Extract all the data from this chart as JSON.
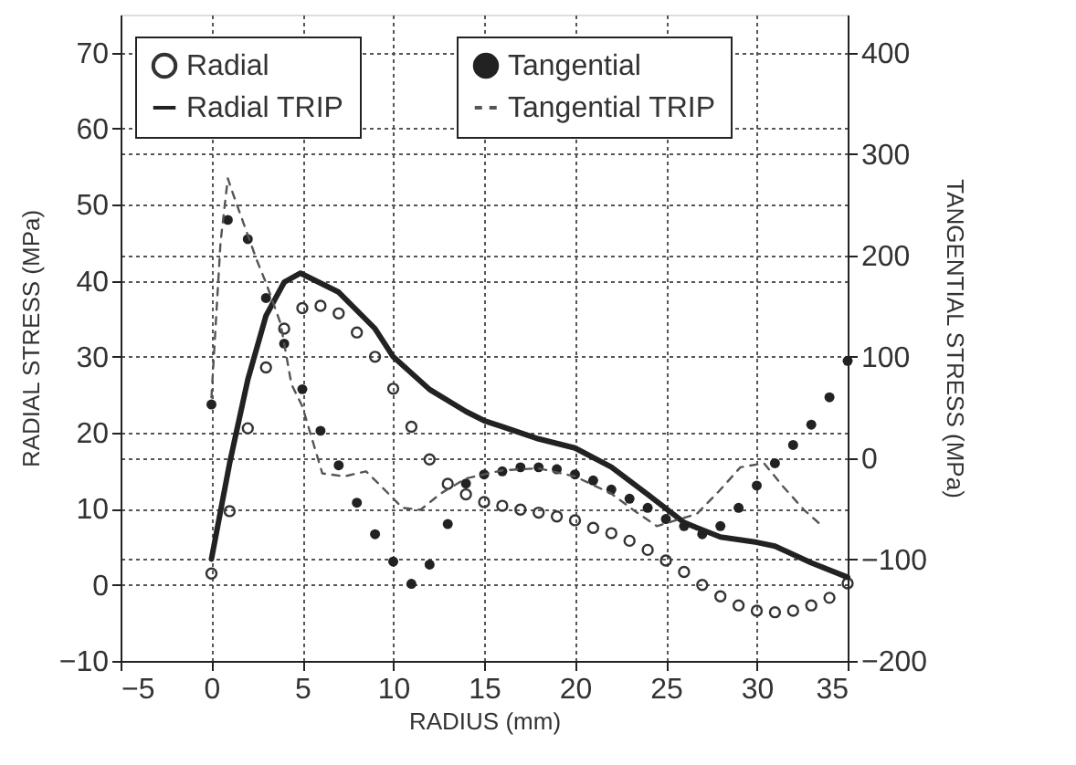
{
  "chart_data": {
    "type": "scatter",
    "xlabel": "RADIUS (mm)",
    "ylabel": "RADIAL STRESS (MPa)",
    "y2label": "TANGENTIAL STRESS (MPa)",
    "xlim": [
      -5,
      35
    ],
    "xticks": [
      -5,
      0,
      5,
      10,
      15,
      20,
      25,
      30,
      35
    ],
    "ylim": [
      -10,
      75
    ],
    "yticks": [
      -10,
      0,
      10,
      20,
      30,
      40,
      50,
      60,
      70
    ],
    "y2lim": [
      -200,
      437.5
    ],
    "y2ticks": [
      -200,
      -100,
      0,
      100,
      200,
      300,
      400
    ],
    "grid": true,
    "legend": "top",
    "series": [
      {
        "name": "Radial",
        "marker": "circle",
        "color": "#333333",
        "axis": "y",
        "x": [
          0,
          1,
          2,
          3,
          4,
          5,
          6,
          7,
          8,
          9,
          10,
          11,
          12,
          13,
          14,
          15,
          16,
          17,
          18,
          19,
          20,
          21,
          22,
          23,
          24,
          25,
          26,
          27,
          28,
          29,
          30,
          31,
          32,
          33,
          34,
          35
        ],
        "values": [
          1.5,
          9.7,
          20.6,
          28.6,
          33.7,
          36.4,
          36.7,
          35.7,
          33.2,
          30,
          25.8,
          20.8,
          16.5,
          13.3,
          11.9,
          10.9,
          10.4,
          9.9,
          9.5,
          9,
          8.5,
          7.5,
          6.8,
          5.8,
          4.6,
          3.2,
          1.7,
          0,
          -1.5,
          -2.7,
          -3.4,
          -3.6,
          -3.4,
          -2.7,
          -1.7,
          0.2
        ]
      },
      {
        "name": "Radial TRIP",
        "type": "line",
        "marker": "none",
        "line_style": "solid",
        "color": "#222222",
        "axis": "y",
        "x": [
          0,
          1,
          2,
          3,
          4,
          4.9,
          7,
          9,
          10,
          12,
          14,
          15,
          16,
          18,
          20,
          22,
          24,
          26,
          28,
          30,
          31,
          33,
          35
        ],
        "values": [
          3.4,
          16,
          27,
          35.4,
          39.8,
          41,
          38.5,
          33.7,
          30,
          25.7,
          22.8,
          21.6,
          20.8,
          19.2,
          18,
          15.5,
          11.9,
          8.2,
          6.3,
          5.6,
          5.1,
          2.9,
          1
        ]
      },
      {
        "name": "Tangential",
        "marker": "circle",
        "color": "#222222",
        "axis": "y2",
        "x": [
          0,
          0.9,
          2,
          3,
          4,
          5,
          6,
          7,
          8,
          9,
          10,
          11,
          12,
          13,
          14,
          15,
          16,
          17,
          18,
          19,
          20,
          21,
          22,
          23,
          24,
          25,
          26,
          27,
          28,
          29,
          30,
          31,
          32,
          33,
          34,
          35
        ],
        "values": [
          53,
          235,
          216,
          158,
          113,
          68,
          27,
          -7,
          -44,
          -75,
          -102,
          -124,
          -105,
          -65,
          -25,
          -16,
          -13,
          -9,
          -9,
          -11,
          -16,
          -22,
          -31,
          -40,
          -49,
          -60,
          -67,
          -75,
          -67,
          -49,
          -27,
          -5,
          13,
          33,
          60,
          96
        ]
      },
      {
        "name": "Tangential TRIP",
        "type": "line",
        "marker": "none",
        "line_style": "dashed",
        "color": "#555555",
        "axis": "y2",
        "x": [
          0,
          0.5,
          0.9,
          1.2,
          2.5,
          3,
          3.8,
          4.4,
          5,
          5.7,
          6.1,
          7.3,
          8.5,
          9.3,
          10.5,
          11.5,
          12.6,
          14,
          16,
          18,
          20,
          22,
          23.2,
          24.5,
          26.7,
          27.9,
          29.1,
          30.4,
          31.4,
          32.6,
          33.6
        ],
        "values": [
          60,
          213,
          276,
          260,
          195,
          173,
          133,
          73,
          51,
          9,
          -15,
          -18,
          -13,
          -27,
          -49,
          -51,
          -35,
          -20,
          -12,
          -10,
          -18,
          -35,
          -51,
          -67,
          -55,
          -33,
          -9,
          -5,
          -27,
          -51,
          -67
        ]
      }
    ]
  }
}
